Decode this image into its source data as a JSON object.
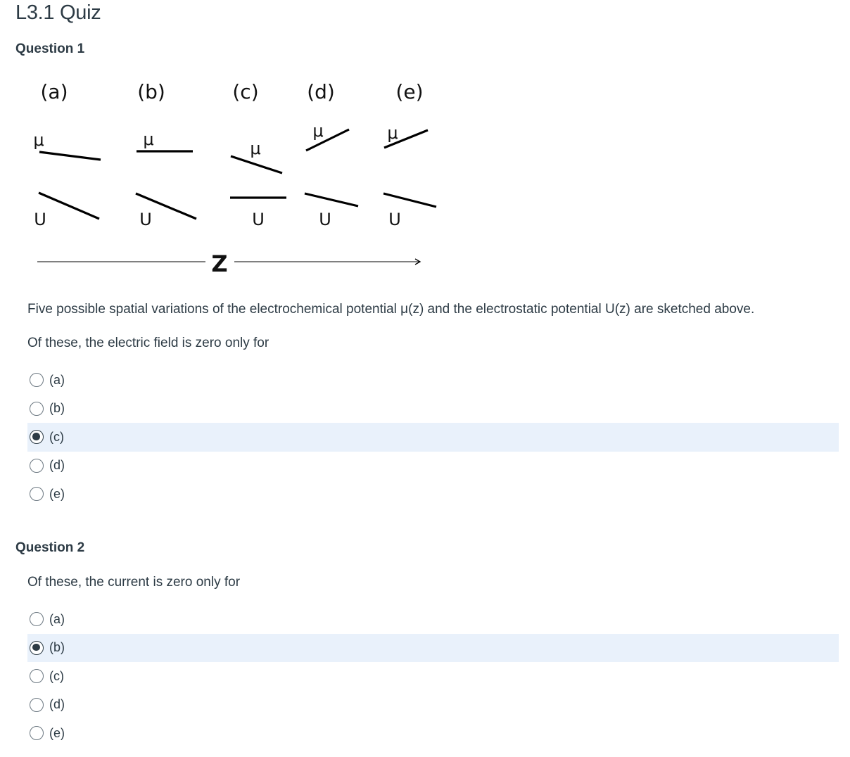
{
  "quiz": {
    "title": "L3.1 Quiz"
  },
  "figure": {
    "case_labels": [
      "(a)",
      "(b)",
      "(c)",
      "(d)",
      "(e)"
    ],
    "mu_symbol": "μ",
    "u_symbol": "U",
    "axis_label": "Z"
  },
  "questions": [
    {
      "heading": "Question 1",
      "description": "Five possible spatial variations of the electrochemical potential μ(z) and the electrostatic potential U(z) are sketched above.",
      "prompt": "Of these, the electric field is zero only for",
      "options": [
        "(a)",
        "(b)",
        "(c)",
        "(d)",
        "(e)"
      ],
      "selected": "(c)"
    },
    {
      "heading": "Question 2",
      "prompt": "Of these, the current is zero only for",
      "options": [
        "(a)",
        "(b)",
        "(c)",
        "(d)",
        "(e)"
      ],
      "selected": "(b)"
    }
  ]
}
